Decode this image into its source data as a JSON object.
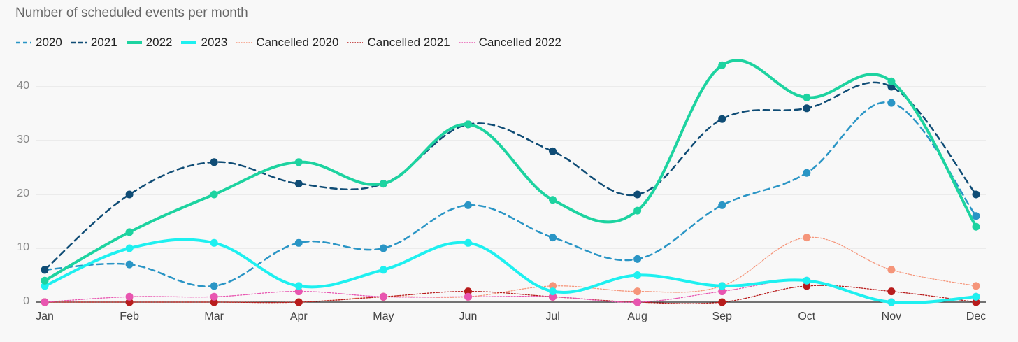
{
  "chart_data": {
    "type": "line",
    "title": "Number of scheduled events per month",
    "xlabel": "",
    "ylabel": "",
    "categories": [
      "Jan",
      "Feb",
      "Mar",
      "Apr",
      "May",
      "Jun",
      "Jul",
      "Aug",
      "Sep",
      "Oct",
      "Nov",
      "Dec"
    ],
    "ylim": [
      0,
      45
    ],
    "yticks": [
      0,
      10,
      20,
      30,
      40
    ],
    "grid": "horizontal",
    "legend": "top-left",
    "series": [
      {
        "name": "2020",
        "color": "#2a95c5",
        "style": "dashed",
        "values": [
          6,
          7,
          3,
          11,
          10,
          18,
          12,
          8,
          18,
          24,
          37,
          16
        ]
      },
      {
        "name": "2021",
        "color": "#0f4c75",
        "style": "dashed",
        "values": [
          6,
          20,
          26,
          22,
          22,
          33,
          28,
          20,
          34,
          36,
          40,
          20
        ]
      },
      {
        "name": "2022",
        "color": "#1dd3a0",
        "style": "solid-thick",
        "values": [
          4,
          13,
          20,
          26,
          22,
          33,
          19,
          17,
          44,
          38,
          41,
          14
        ]
      },
      {
        "name": "2023",
        "color": "#1ef0f0",
        "style": "solid-thick",
        "values": [
          3,
          10,
          11,
          3,
          6,
          11,
          2,
          5,
          3,
          4,
          0,
          1
        ]
      },
      {
        "name": "Cancelled 2020",
        "color": "#f5957a",
        "style": "dotted",
        "values": [
          0,
          0,
          0,
          0,
          1,
          1,
          3,
          2,
          3,
          12,
          6,
          3
        ]
      },
      {
        "name": "Cancelled 2021",
        "color": "#b81c1c",
        "style": "dotted",
        "values": [
          0,
          0,
          0,
          0,
          1,
          2,
          1,
          0,
          0,
          3,
          2,
          0
        ]
      },
      {
        "name": "Cancelled 2022",
        "color": "#e855b0",
        "style": "dotted",
        "values": [
          0,
          1,
          1,
          2,
          1,
          1,
          1,
          0,
          2,
          4,
          0,
          1
        ]
      }
    ]
  }
}
